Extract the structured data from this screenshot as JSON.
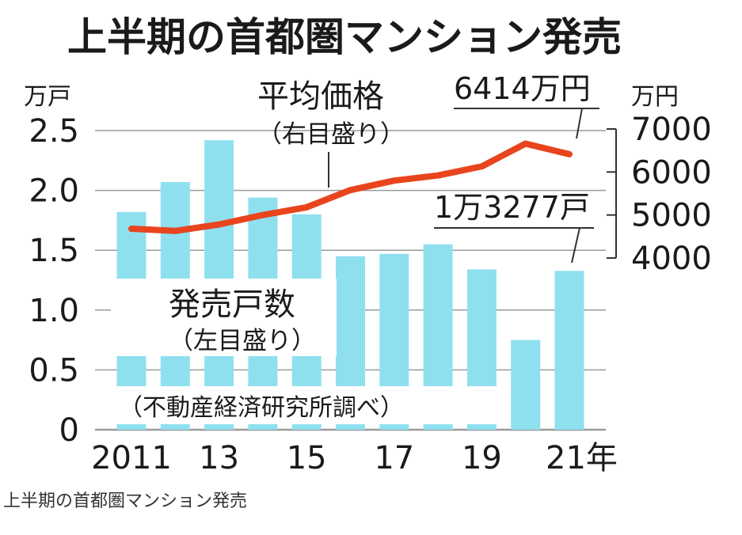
{
  "chart_data": {
    "type": "bar+line",
    "title": "上半期の首都圏マンション発売",
    "caption": "上半期の首都圏マンション発売",
    "source": "（不動産経済研究所調べ）",
    "x_ticks": [
      "2011",
      "13",
      "15",
      "17",
      "19",
      "21年"
    ],
    "categories": [
      "2011",
      "2012",
      "2013",
      "2014",
      "2015",
      "2016",
      "2017",
      "2018",
      "2019",
      "2020",
      "2021"
    ],
    "left_axis": {
      "unit": "万戸",
      "ticks": [
        "0",
        "0.5",
        "1.0",
        "1.5",
        "2.0",
        "2.5"
      ],
      "ylim": [
        0,
        2.5
      ]
    },
    "right_axis": {
      "unit": "万円",
      "ticks": [
        "4000",
        "5000",
        "6000",
        "7000"
      ],
      "ylim": [
        4000,
        7000
      ]
    },
    "bar_series": {
      "name": "発売戸数",
      "sublabel": "（左目盛り）",
      "values": [
        1.82,
        2.07,
        2.42,
        1.94,
        1.8,
        1.45,
        1.47,
        1.55,
        1.34,
        0.75,
        1.3277
      ],
      "color": "#8fe0ef"
    },
    "line_series": {
      "name": "平均価格",
      "sublabel": "（右目盛り）",
      "values": [
        4680,
        4630,
        4780,
        5000,
        5180,
        5580,
        5800,
        5920,
        6130,
        6660,
        6414
      ],
      "color": "#e8451e"
    },
    "annotations": {
      "line_end": "6414万円",
      "bar_end": "1万3277戸"
    }
  }
}
